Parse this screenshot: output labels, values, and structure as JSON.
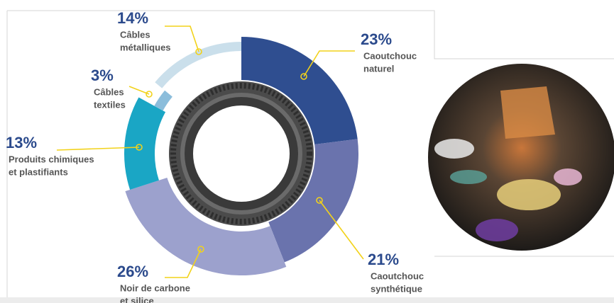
{
  "chart_data": {
    "type": "pie",
    "labels": [
      [
        "Caoutchouc",
        "naturel"
      ],
      [
        "Caoutchouc",
        "synthétique"
      ],
      [
        "Noir de carbone",
        "et silice"
      ],
      [
        "Produits chimiques",
        "et plastifiants"
      ],
      [
        "Câbles",
        "textiles"
      ],
      [
        "Câbles",
        "métalliques"
      ]
    ],
    "values": [
      23,
      21,
      26,
      13,
      3,
      14
    ],
    "value_labels": [
      "23%",
      "21%",
      "26%",
      "13%",
      "3%",
      "14%"
    ],
    "colors": [
      "#2f4e90",
      "#6a73ad",
      "#9ca1cd",
      "#1aa6c5",
      "#8bbddb",
      "#cadfeb"
    ]
  }
}
